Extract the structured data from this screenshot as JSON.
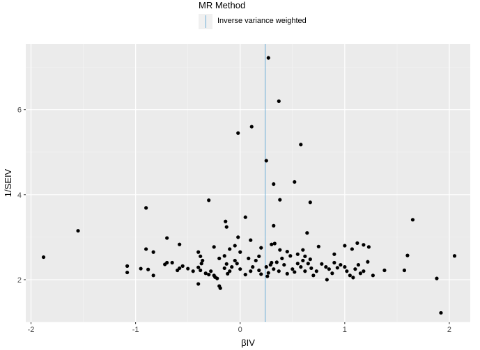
{
  "legend": {
    "title": "MR Method",
    "items": [
      {
        "label": "Inverse variance weighted",
        "color": "#6baed6"
      }
    ]
  },
  "chart_data": {
    "type": "scatter",
    "title": "",
    "xlabel": "βIV",
    "ylabel": "1/SEIV",
    "xlim": [
      -2.05,
      2.2
    ],
    "ylim": [
      1.0,
      7.55
    ],
    "xticks": [
      -2,
      -1,
      0,
      1,
      2
    ],
    "xtick_labels": [
      "-2",
      "-1",
      "0",
      "1",
      "2"
    ],
    "yticks": [
      2,
      4,
      6
    ],
    "ytick_labels": [
      "2",
      "4",
      "6"
    ],
    "grid": true,
    "legend_position": "top",
    "point_color": "#000000",
    "ivw_estimate": 0.24,
    "ivw_color": "#6baed6",
    "points": [
      [
        0.27,
        7.22
      ],
      [
        0.37,
        6.2
      ],
      [
        0.11,
        5.6
      ],
      [
        -0.02,
        5.45
      ],
      [
        0.58,
        5.18
      ],
      [
        0.25,
        4.8
      ],
      [
        0.52,
        4.3
      ],
      [
        0.32,
        4.25
      ],
      [
        0.38,
        3.88
      ],
      [
        -0.3,
        3.87
      ],
      [
        0.67,
        3.82
      ],
      [
        -0.9,
        3.69
      ],
      [
        0.05,
        3.47
      ],
      [
        1.65,
        3.41
      ],
      [
        -1.55,
        3.15
      ],
      [
        -0.14,
        3.37
      ],
      [
        -0.13,
        3.24
      ],
      [
        0.32,
        3.27
      ],
      [
        0.64,
        3.1
      ],
      [
        -0.7,
        2.98
      ],
      [
        -0.02,
        3.0
      ],
      [
        0.1,
        2.93
      ],
      [
        -0.9,
        2.72
      ],
      [
        -0.83,
        2.65
      ],
      [
        -0.58,
        2.83
      ],
      [
        -0.25,
        2.77
      ],
      [
        -0.4,
        2.65
      ],
      [
        -0.38,
        2.55
      ],
      [
        -0.15,
        2.56
      ],
      [
        -0.1,
        2.72
      ],
      [
        0.2,
        2.75
      ],
      [
        0.3,
        2.83
      ],
      [
        0.33,
        2.85
      ],
      [
        0.38,
        2.7
      ],
      [
        0.45,
        2.66
      ],
      [
        0.48,
        2.56
      ],
      [
        0.55,
        2.6
      ],
      [
        0.62,
        2.55
      ],
      [
        0.67,
        2.48
      ],
      [
        0.75,
        2.78
      ],
      [
        0.9,
        2.6
      ],
      [
        1.0,
        2.8
      ],
      [
        1.07,
        2.72
      ],
      [
        1.12,
        2.86
      ],
      [
        1.18,
        2.82
      ],
      [
        1.23,
        2.77
      ],
      [
        1.6,
        2.57
      ],
      [
        2.05,
        2.56
      ],
      [
        -1.88,
        2.53
      ],
      [
        -1.08,
        2.32
      ],
      [
        -1.08,
        2.17
      ],
      [
        -0.95,
        2.26
      ],
      [
        -0.88,
        2.24
      ],
      [
        -0.83,
        2.1
      ],
      [
        -0.72,
        2.36
      ],
      [
        -0.7,
        2.4
      ],
      [
        -0.6,
        2.22
      ],
      [
        -0.58,
        2.27
      ],
      [
        -0.55,
        2.32
      ],
      [
        -0.5,
        2.26
      ],
      [
        -0.45,
        2.2
      ],
      [
        -0.4,
        2.29
      ],
      [
        -0.38,
        2.22
      ],
      [
        -0.37,
        2.38
      ],
      [
        -0.36,
        2.45
      ],
      [
        -0.33,
        2.15
      ],
      [
        -0.3,
        2.12
      ],
      [
        -0.28,
        2.2
      ],
      [
        -0.25,
        2.1
      ],
      [
        -0.24,
        2.06
      ],
      [
        -0.22,
        2.03
      ],
      [
        -0.2,
        1.85
      ],
      [
        -0.19,
        1.8
      ],
      [
        -0.15,
        2.27
      ],
      [
        -0.13,
        2.37
      ],
      [
        -0.12,
        2.14
      ],
      [
        -0.1,
        2.2
      ],
      [
        -0.08,
        2.3
      ],
      [
        -0.05,
        2.45
      ],
      [
        -0.03,
        2.38
      ],
      [
        0.0,
        2.25
      ],
      [
        0.05,
        2.12
      ],
      [
        0.1,
        2.2
      ],
      [
        0.12,
        2.3
      ],
      [
        0.15,
        2.45
      ],
      [
        0.18,
        2.22
      ],
      [
        0.2,
        2.13
      ],
      [
        0.25,
        2.3
      ],
      [
        0.27,
        2.16
      ],
      [
        0.29,
        2.35
      ],
      [
        0.32,
        2.25
      ],
      [
        0.35,
        2.41
      ],
      [
        0.37,
        2.2
      ],
      [
        0.4,
        2.5
      ],
      [
        0.42,
        2.35
      ],
      [
        0.45,
        2.14
      ],
      [
        0.5,
        2.25
      ],
      [
        0.52,
        2.18
      ],
      [
        0.55,
        2.38
      ],
      [
        0.58,
        2.3
      ],
      [
        0.6,
        2.45
      ],
      [
        0.62,
        2.2
      ],
      [
        0.65,
        2.38
      ],
      [
        0.68,
        2.27
      ],
      [
        0.7,
        2.1
      ],
      [
        0.73,
        2.2
      ],
      [
        0.78,
        2.37
      ],
      [
        0.82,
        2.3
      ],
      [
        0.85,
        2.25
      ],
      [
        0.88,
        2.15
      ],
      [
        0.9,
        2.4
      ],
      [
        0.93,
        2.28
      ],
      [
        0.96,
        2.35
      ],
      [
        1.0,
        2.3
      ],
      [
        1.02,
        2.2
      ],
      [
        1.05,
        2.1
      ],
      [
        1.08,
        2.05
      ],
      [
        1.1,
        2.25
      ],
      [
        1.13,
        2.35
      ],
      [
        1.15,
        2.15
      ],
      [
        1.18,
        2.2
      ],
      [
        1.22,
        2.42
      ],
      [
        1.27,
        2.1
      ],
      [
        1.38,
        2.22
      ],
      [
        1.57,
        2.22
      ],
      [
        1.88,
        2.03
      ],
      [
        1.92,
        1.22
      ],
      [
        -0.4,
        1.9
      ],
      [
        0.83,
        2.0
      ],
      [
        -0.05,
        2.8
      ],
      [
        0.0,
        2.65
      ],
      [
        0.3,
        2.4
      ],
      [
        0.18,
        2.55
      ],
      [
        0.6,
        2.7
      ],
      [
        -0.65,
        2.4
      ],
      [
        -0.2,
        2.5
      ],
      [
        0.08,
        2.5
      ],
      [
        0.26,
        2.08
      ]
    ]
  }
}
